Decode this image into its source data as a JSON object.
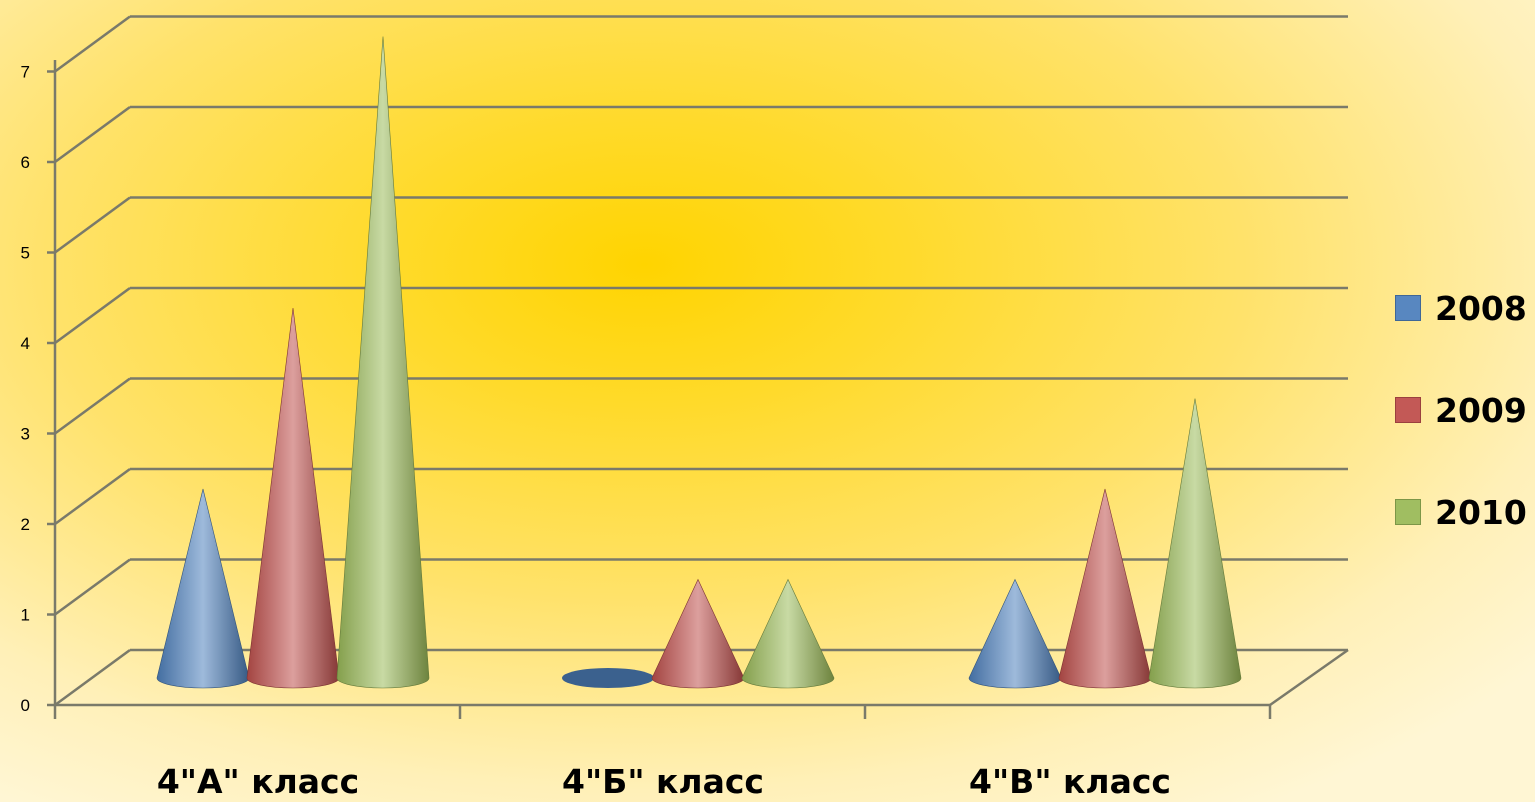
{
  "chart_data": {
    "type": "bar",
    "subtype": "3d-cone",
    "categories": [
      "4\"А\" класс",
      "4\"Б\" класс",
      "4\"В\" класс"
    ],
    "series": [
      {
        "name": "2008",
        "color": "#4f81bd",
        "values": [
          2,
          0,
          1
        ]
      },
      {
        "name": "2009",
        "color": "#c0504d",
        "values": [
          4,
          1,
          2
        ]
      },
      {
        "name": "2010",
        "color": "#9bbb59",
        "values": [
          7,
          1,
          3
        ]
      }
    ],
    "y_ticks": [
      "0",
      "1",
      "2",
      "3",
      "4",
      "5",
      "6",
      "7"
    ],
    "ylim": [
      0,
      7
    ],
    "grid": true,
    "legend_position": "right"
  }
}
